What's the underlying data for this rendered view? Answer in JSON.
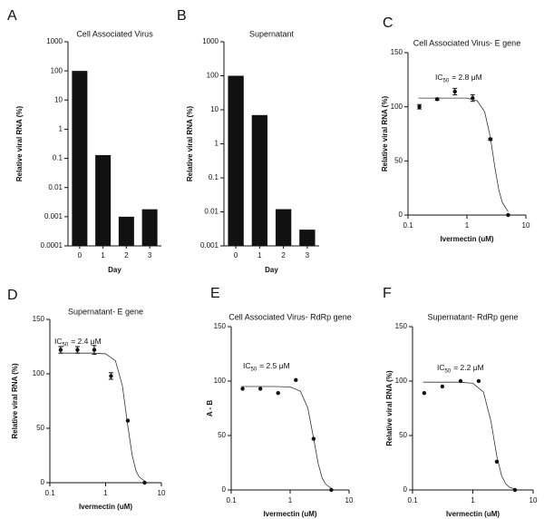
{
  "chart_data": [
    {
      "type": "bar",
      "panel": "A",
      "title": "Cell Associated Virus",
      "xlabel": "Day",
      "ylabel": "Relative viral RNA (%)",
      "categories": [
        "0",
        "1",
        "2",
        "3"
      ],
      "values": [
        100,
        0.13,
        0.001,
        0.0018
      ],
      "color": "#111111",
      "ylog": true,
      "ylim": [
        0.0001,
        1000
      ],
      "yticks": [
        0.0001,
        0.001,
        0.01,
        0.1,
        1,
        10,
        100,
        1000
      ]
    },
    {
      "type": "bar",
      "panel": "B",
      "title": "Supernatant",
      "xlabel": "Day",
      "ylabel": "Relative viral RNA (%)",
      "categories": [
        "0",
        "1",
        "2",
        "3"
      ],
      "values": [
        100,
        7,
        0.012,
        0.003
      ],
      "color": "#111111",
      "ylog": true,
      "ylim": [
        0.001,
        1000
      ],
      "yticks": [
        0.001,
        0.01,
        0.1,
        1,
        10,
        100,
        1000
      ]
    },
    {
      "type": "scatter",
      "panel": "C",
      "title": "Cell Associated Virus- E gene",
      "xlabel": "Ivermectin (uM)",
      "ylabel": "Relative viral RNA (%)",
      "annotation": {
        "text": "IC",
        "sub": "50",
        "rest": "= 2.8 μM"
      },
      "x": [
        0.156,
        0.3125,
        0.625,
        1.25,
        2.5,
        5
      ],
      "values": [
        100,
        107,
        114,
        108,
        70,
        0
      ],
      "errors": [
        2,
        1,
        3,
        3,
        1,
        0
      ],
      "curve": {
        "x": [
          0.15,
          0.3,
          0.6,
          1,
          1.5,
          2,
          2.5,
          3,
          3.5,
          4,
          5
        ],
        "values": [
          108,
          108,
          108,
          108,
          105.5,
          95.3,
          71.7,
          43,
          22.4,
          11.4,
          3.2
        ]
      },
      "color": "#111111",
      "xlog": true,
      "xlim": [
        0.1,
        10
      ],
      "xticks": [
        0.1,
        1,
        10
      ],
      "ylim": [
        0,
        150
      ],
      "yticks": [
        0,
        50,
        100,
        150
      ]
    },
    {
      "type": "scatter",
      "panel": "D",
      "title": "Supernatant- E gene",
      "xlabel": "Ivermectin (uM)",
      "ylabel": "Relative viral RNA (%)",
      "annotation": {
        "text": "IC",
        "sub": "50",
        "rest": "= 2.4 μM"
      },
      "x": [
        0.156,
        0.3125,
        0.625,
        1.25,
        2.5,
        5
      ],
      "values": [
        122,
        122,
        122,
        98,
        57,
        0
      ],
      "errors": [
        3,
        3,
        4,
        3,
        0,
        0
      ],
      "curve": {
        "x": [
          0.15,
          0.3,
          0.6,
          1,
          1.5,
          2,
          2.5,
          3,
          3.5,
          4,
          5
        ],
        "values": [
          119,
          119,
          119,
          118.4,
          112,
          89,
          52,
          25,
          11,
          5.3,
          1.5
        ]
      },
      "color": "#111111",
      "xlog": true,
      "xlim": [
        0.1,
        10
      ],
      "xticks": [
        0.1,
        1,
        10
      ],
      "ylim": [
        0,
        150
      ],
      "yticks": [
        0,
        50,
        100,
        150
      ]
    },
    {
      "type": "scatter",
      "panel": "E",
      "title": "Cell Associated Virus- RdRp gene",
      "xlabel": "Ivermectin (uM)",
      "ylabel": "A - B",
      "annotation": {
        "text": "IC",
        "sub": "50",
        "rest": "= 2.5 μM"
      },
      "x": [
        0.156,
        0.3125,
        0.625,
        1.25,
        2.5,
        5
      ],
      "values": [
        93,
        93,
        89,
        101,
        47,
        0
      ],
      "curve": {
        "x": [
          0.15,
          0.3,
          0.6,
          1,
          1.5,
          2,
          2.5,
          3,
          3.5,
          4,
          5
        ],
        "values": [
          95,
          95,
          95,
          94.6,
          90.7,
          75,
          47.5,
          23.8,
          11,
          5.3,
          1.5
        ]
      },
      "color": "#111111",
      "xlog": true,
      "xlim": [
        0.1,
        10
      ],
      "xticks": [
        0.1,
        1,
        10
      ],
      "ylim": [
        0,
        150
      ],
      "yticks": [
        0,
        50,
        100,
        150
      ]
    },
    {
      "type": "scatter",
      "panel": "F",
      "title": "Supernatant- RdRp gene",
      "xlabel": "Ivermectin (uM)",
      "ylabel": "Relative viral RNA (%)",
      "annotation": {
        "text": "IC",
        "sub": "50",
        "rest": "= 2.2 μM"
      },
      "x": [
        0.156,
        0.3125,
        0.625,
        1.25,
        2.5,
        5
      ],
      "values": [
        89,
        95,
        100,
        100,
        26,
        0
      ],
      "curve": {
        "x": [
          0.15,
          0.3,
          0.6,
          1,
          1.5,
          2,
          2.5,
          3,
          3.5,
          4,
          5
        ],
        "values": [
          99,
          99,
          99,
          98,
          90,
          63,
          31,
          13,
          5.8,
          2.7,
          0.7
        ]
      },
      "color": "#111111",
      "xlog": true,
      "xlim": [
        0.1,
        10
      ],
      "xticks": [
        0.1,
        1,
        10
      ],
      "ylim": [
        0,
        150
      ],
      "yticks": [
        0,
        50,
        100,
        150
      ]
    }
  ]
}
